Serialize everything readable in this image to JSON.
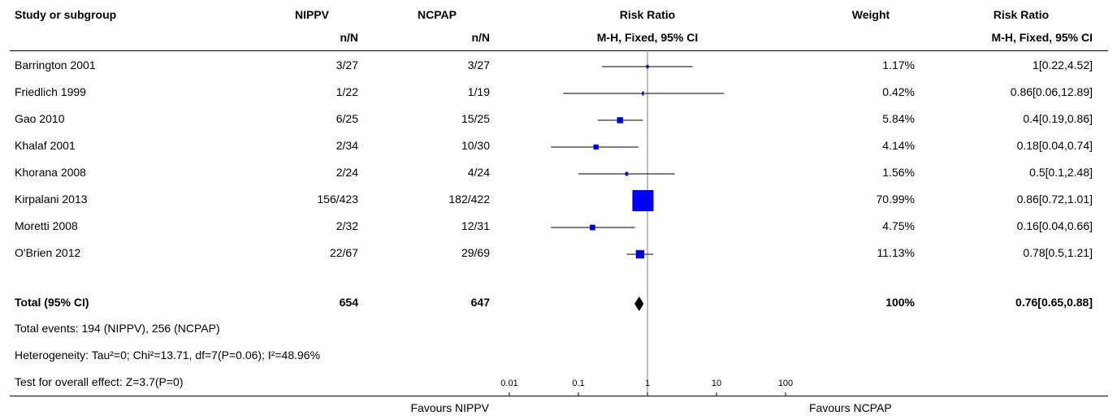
{
  "headers": {
    "study": "Study or subgroup",
    "exp": "NIPPV",
    "exp_sub": "n/N",
    "ctrl": "NCPAP",
    "ctrl_sub": "n/N",
    "plot": "Risk Ratio",
    "plot_sub": "M-H, Fixed, 95% CI",
    "weight": "Weight",
    "effect": "Risk Ratio",
    "effect_sub": "M-H, Fixed, 95% CI"
  },
  "chart_data": {
    "type": "forest",
    "scale": "log",
    "xlim": [
      0.01,
      100
    ],
    "ticks": [
      {
        "value": 0.01,
        "label": "0.01"
      },
      {
        "value": 0.1,
        "label": "0.1"
      },
      {
        "value": 1,
        "label": "1"
      },
      {
        "value": 10,
        "label": "10"
      },
      {
        "value": 100,
        "label": "100"
      }
    ],
    "favours_left": "Favours NIPPV",
    "favours_right": "Favours NCPAP",
    "studies": [
      {
        "name": "Barrington 2001",
        "exp": "3/27",
        "ctrl": "3/27",
        "weight": "1.17%",
        "effect": "1[0.22,4.52]",
        "rr": 1,
        "lo": 0.22,
        "hi": 4.52,
        "w": 1.17
      },
      {
        "name": "Friedlich 1999",
        "exp": "1/22",
        "ctrl": "1/19",
        "weight": "0.42%",
        "effect": "0.86[0.06,12.89]",
        "rr": 0.86,
        "lo": 0.06,
        "hi": 12.89,
        "w": 0.42
      },
      {
        "name": "Gao 2010",
        "exp": "6/25",
        "ctrl": "15/25",
        "weight": "5.84%",
        "effect": "0.4[0.19,0.86]",
        "rr": 0.4,
        "lo": 0.19,
        "hi": 0.86,
        "w": 5.84
      },
      {
        "name": "Khalaf 2001",
        "exp": "2/34",
        "ctrl": "10/30",
        "weight": "4.14%",
        "effect": "0.18[0.04,0.74]",
        "rr": 0.18,
        "lo": 0.04,
        "hi": 0.74,
        "w": 4.14
      },
      {
        "name": "Khorana 2008",
        "exp": "2/24",
        "ctrl": "4/24",
        "weight": "1.56%",
        "effect": "0.5[0.1,2.48]",
        "rr": 0.5,
        "lo": 0.1,
        "hi": 2.48,
        "w": 1.56
      },
      {
        "name": "Kirpalani 2013",
        "exp": "156/423",
        "ctrl": "182/422",
        "weight": "70.99%",
        "effect": "0.86[0.72,1.01]",
        "rr": 0.86,
        "lo": 0.72,
        "hi": 1.01,
        "w": 70.99
      },
      {
        "name": "Moretti 2008",
        "exp": "2/32",
        "ctrl": "12/31",
        "weight": "4.75%",
        "effect": "0.16[0.04,0.66]",
        "rr": 0.16,
        "lo": 0.04,
        "hi": 0.66,
        "w": 4.75
      },
      {
        "name": "O'Brien 2012",
        "exp": "22/67",
        "ctrl": "29/69",
        "weight": "11.13%",
        "effect": "0.78[0.5,1.21]",
        "rr": 0.78,
        "lo": 0.5,
        "hi": 1.21,
        "w": 11.13
      }
    ],
    "total": {
      "name": "Total (95% CI)",
      "exp": "654",
      "ctrl": "647",
      "weight": "100%",
      "effect": "0.76[0.65,0.88]",
      "rr": 0.76,
      "lo": 0.65,
      "hi": 0.88
    },
    "colors": {
      "square": "#0000ff",
      "line": "#000080",
      "diamond": "#000000",
      "null_line": "#808080"
    }
  },
  "footnotes": {
    "events": "Total events: 194 (NIPPV), 256 (NCPAP)",
    "heterogeneity": "Heterogeneity: Tau²=0; Chi²=13.71, df=7(P=0.06); I²=48.96%",
    "overall": "Test for overall effect: Z=3.7(P=0)"
  }
}
